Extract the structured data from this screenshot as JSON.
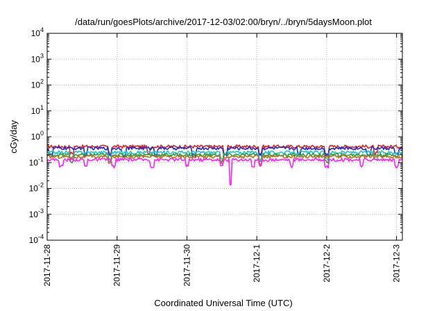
{
  "chart_data": {
    "type": "line",
    "title": "/data/run/goesPlots/archive/2017-12-03/02:00/bryn/../bryn/5daysMoon.plot",
    "xlabel": "Coordinated Universal Time (UTC)",
    "ylabel": "cGy/day",
    "yscale": "log",
    "ylim": [
      0.0001,
      10000
    ],
    "xlim": [
      "2017-11-28",
      "2017-12-03T02:00"
    ],
    "x_ticks": [
      "2017-11-28",
      "2017-11-29",
      "2017-11-30",
      "2017-12-1",
      "2017-12-2",
      "2017-12-3"
    ],
    "y_ticks": [
      {
        "base": "10",
        "exp": "-4"
      },
      {
        "base": "10",
        "exp": "-3"
      },
      {
        "base": "10",
        "exp": "-2"
      },
      {
        "base": "10",
        "exp": "-1"
      },
      {
        "base": "10",
        "exp": "0"
      },
      {
        "base": "10",
        "exp": "1"
      },
      {
        "base": "10",
        "exp": "2"
      },
      {
        "base": "10",
        "exp": "3"
      },
      {
        "base": "10",
        "exp": "4"
      }
    ],
    "grid": true,
    "series": [
      {
        "color": "#e8201e",
        "typical": 0.42,
        "dips": [
          0.35,
          0.9,
          1.45,
          2.55,
          3.05,
          4.0,
          4.7
        ]
      },
      {
        "color": "#1e2bd6",
        "typical": 0.36,
        "dips": [
          0.05,
          0.55,
          0.9,
          1.1,
          1.55,
          2.1,
          2.55,
          3.05,
          3.6,
          4.0,
          4.6,
          5.0
        ]
      },
      {
        "color": "#1ec8c8",
        "typical": 0.25,
        "dips": [
          0.35,
          0.9,
          2.5,
          3.05,
          4.0,
          4.7
        ]
      },
      {
        "color": "#2e9e3a",
        "typical": 0.2,
        "dips": [
          0.35,
          0.9,
          2.5,
          3.05,
          4.0
        ]
      },
      {
        "color": "#c06a1a",
        "typical": 0.17,
        "dips": [
          0.9,
          2.5,
          3.05
        ]
      },
      {
        "color": "#ff20ff",
        "typical": 0.13,
        "dips": [
          0.2,
          0.55,
          0.95,
          1.5,
          2.0,
          2.5,
          2.95,
          3.05,
          3.5,
          4.0,
          4.5,
          5.0
        ],
        "min": 0.014,
        "min_at": 2.62
      }
    ]
  }
}
